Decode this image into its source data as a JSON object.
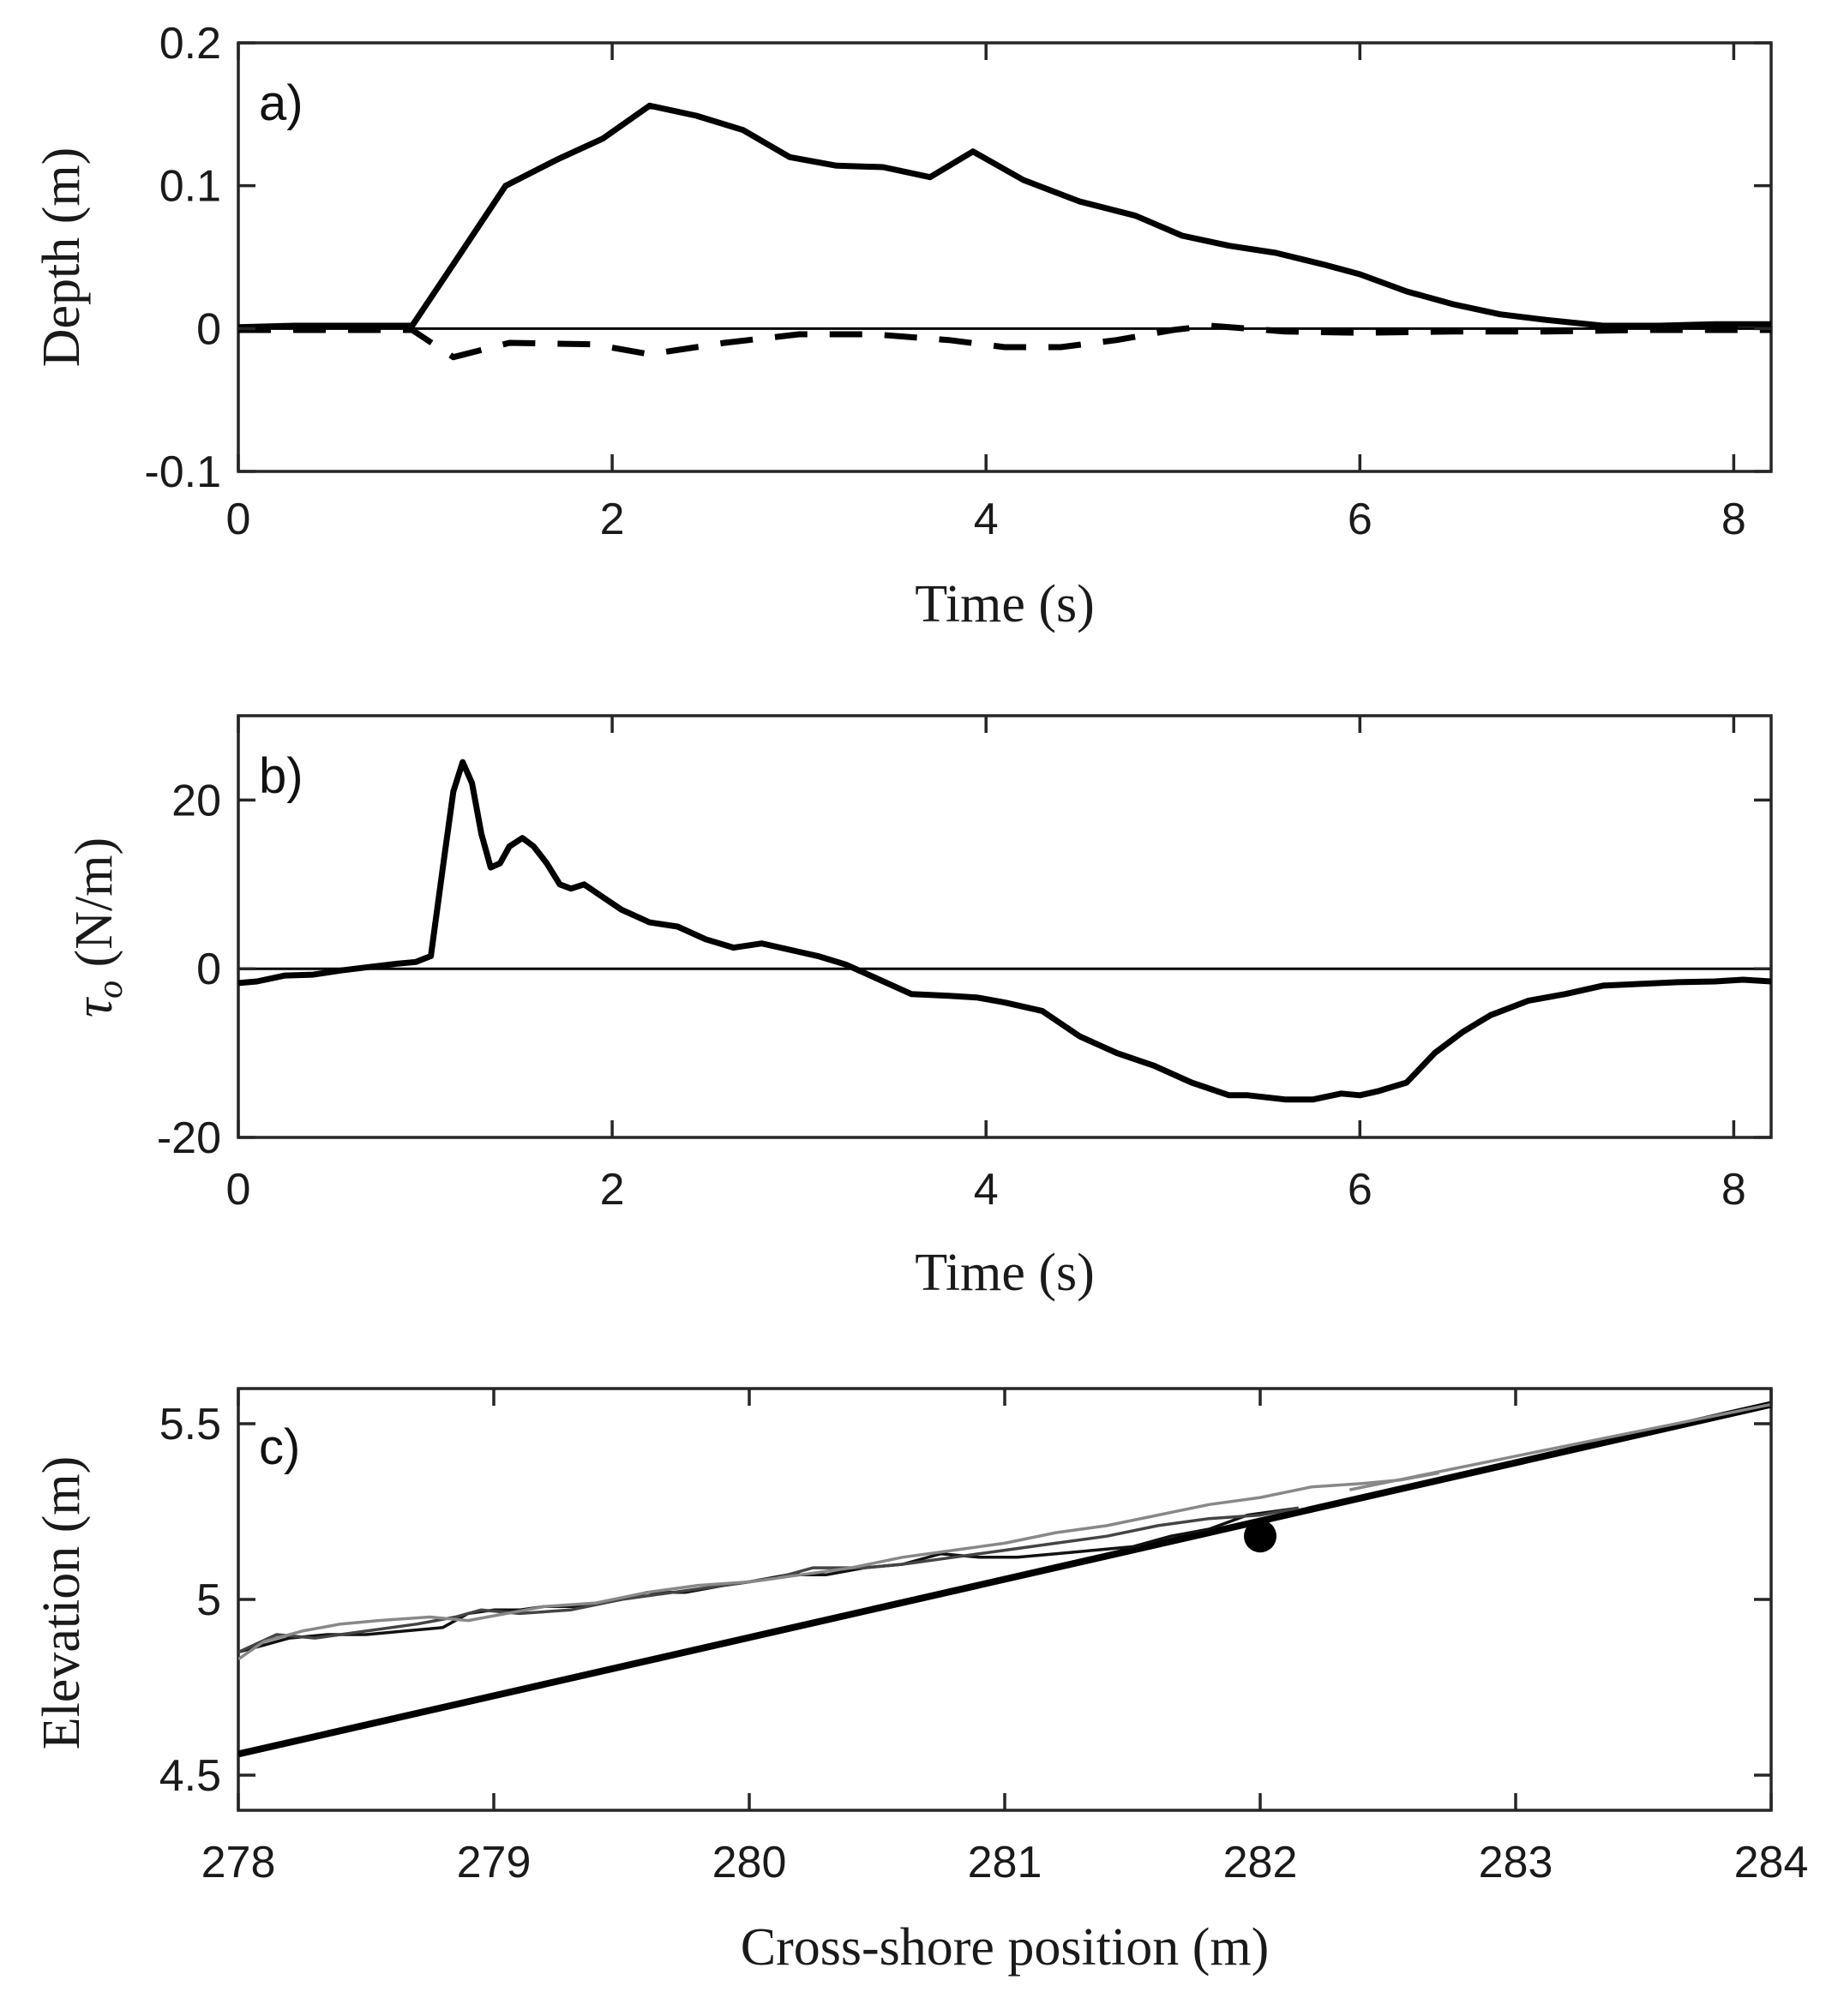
{
  "chart_data": [
    {
      "type": "line",
      "panel_label": "a)",
      "xlabel": "Time (s)",
      "ylabel": "Depth (m)",
      "xlim": [
        0,
        8.2
      ],
      "ylim": [
        -0.1,
        0.2
      ],
      "xticks": [
        0,
        2,
        4,
        6,
        8
      ],
      "xtick_labels": [
        "0",
        "2",
        "4",
        "6",
        "8"
      ],
      "yticks": [
        -0.1,
        0,
        0.1,
        0.2
      ],
      "ytick_labels": [
        "-0.1",
        "0",
        "0.1",
        "0.2"
      ],
      "zero_line": true,
      "series": [
        {
          "name": "depth-solid",
          "style": "solid",
          "color": "#000000",
          "x": [
            0,
            0.3,
            0.6,
            0.93,
            1.15,
            1.43,
            1.7,
            1.95,
            2.2,
            2.45,
            2.7,
            2.95,
            3.2,
            3.45,
            3.7,
            3.93,
            4.2,
            4.5,
            4.8,
            5.05,
            5.3,
            5.55,
            5.8,
            6.0,
            6.25,
            6.5,
            6.75,
            7.0,
            7.3,
            7.6,
            7.9,
            8.2
          ],
          "y": [
            0.001,
            0.002,
            0.002,
            0.002,
            0.045,
            0.1,
            0.118,
            0.133,
            0.156,
            0.149,
            0.139,
            0.12,
            0.114,
            0.113,
            0.106,
            0.124,
            0.104,
            0.089,
            0.079,
            0.065,
            0.058,
            0.053,
            0.045,
            0.038,
            0.026,
            0.017,
            0.01,
            0.006,
            0.002,
            0.002,
            0.003,
            0.003
          ]
        },
        {
          "name": "depth-dashed",
          "style": "dashed",
          "color": "#000000",
          "x": [
            0,
            0.5,
            0.93,
            1.15,
            1.45,
            1.9,
            2.2,
            2.6,
            3.0,
            3.4,
            3.8,
            4.1,
            4.4,
            4.7,
            5.0,
            5.2,
            5.6,
            6.0,
            6.5,
            7.0,
            7.5,
            8.2
          ],
          "y": [
            -0.001,
            -0.001,
            -0.001,
            -0.02,
            -0.01,
            -0.011,
            -0.018,
            -0.01,
            -0.004,
            -0.004,
            -0.008,
            -0.013,
            -0.013,
            -0.008,
            -0.001,
            0.002,
            -0.002,
            -0.003,
            -0.002,
            -0.002,
            -0.001,
            -0.001
          ]
        }
      ]
    },
    {
      "type": "line",
      "panel_label": "b)",
      "xlabel": "Time (s)",
      "ylabel_symbol": "τ",
      "ylabel_subscript": "o",
      "ylabel_rest": " (N/m)",
      "xlim": [
        0,
        8.2
      ],
      "ylim": [
        -20,
        30
      ],
      "xticks": [
        0,
        2,
        4,
        6,
        8
      ],
      "xtick_labels": [
        "0",
        "2",
        "4",
        "6",
        "8"
      ],
      "yticks": [
        -20,
        0,
        20
      ],
      "ytick_labels": [
        "-20",
        "0",
        "20"
      ],
      "zero_line": true,
      "series": [
        {
          "name": "tau-o",
          "style": "solid",
          "color": "#000000",
          "x": [
            0,
            0.1,
            0.25,
            0.4,
            0.55,
            0.7,
            0.85,
            0.95,
            1.03,
            1.1,
            1.15,
            1.2,
            1.25,
            1.3,
            1.35,
            1.4,
            1.45,
            1.52,
            1.58,
            1.65,
            1.72,
            1.78,
            1.85,
            1.95,
            2.05,
            2.2,
            2.35,
            2.5,
            2.65,
            2.8,
            3.0,
            3.1,
            3.25,
            3.4,
            3.6,
            3.8,
            3.95,
            4.1,
            4.3,
            4.5,
            4.7,
            4.9,
            5.1,
            5.3,
            5.4,
            5.6,
            5.75,
            5.9,
            6.0,
            6.1,
            6.25,
            6.4,
            6.55,
            6.7,
            6.9,
            7.1,
            7.3,
            7.5,
            7.7,
            7.9,
            8.05,
            8.2
          ],
          "y": [
            -1.7,
            -1.5,
            -0.8,
            -0.7,
            -0.2,
            0.2,
            0.6,
            0.8,
            1.5,
            13,
            21,
            24.5,
            22,
            16,
            12,
            12.5,
            14.5,
            15.5,
            14.5,
            12.5,
            10,
            9.5,
            10,
            8.5,
            7,
            5.5,
            5,
            3.5,
            2.5,
            3,
            2,
            1.5,
            0.5,
            -1,
            -3,
            -3.2,
            -3.4,
            -4,
            -5,
            -8,
            -10,
            -11.5,
            -13.5,
            -15,
            -15,
            -15.5,
            -15.5,
            -14.8,
            -15,
            -14.5,
            -13.5,
            -10,
            -7.5,
            -5.5,
            -3.8,
            -3,
            -2,
            -1.8,
            -1.6,
            -1.5,
            -1.3,
            -1.5
          ]
        }
      ]
    },
    {
      "type": "line",
      "panel_label": "c)",
      "xlabel": "Cross-shore position (m)",
      "ylabel": "Elevation (m)",
      "xlim": [
        278,
        284
      ],
      "ylim": [
        4.4,
        5.6
      ],
      "xticks": [
        278,
        279,
        280,
        281,
        282,
        283,
        284
      ],
      "xtick_labels": [
        "278",
        "279",
        "280",
        "281",
        "282",
        "283",
        "284"
      ],
      "yticks": [
        4.5,
        5,
        5.5
      ],
      "ytick_labels": [
        "4.5",
        "5",
        "5.5"
      ],
      "series": [
        {
          "name": "bed-profile",
          "style": "solid-thick",
          "color": "#000000",
          "x": [
            278,
            284
          ],
          "y": [
            4.56,
            5.555
          ]
        },
        {
          "name": "bed-profile-overlay",
          "style": "solid",
          "color": "#888888",
          "x": [
            282.35,
            284
          ],
          "y": [
            5.312,
            5.555
          ]
        },
        {
          "name": "surface-black",
          "style": "solid",
          "color": "#111111",
          "x": [
            278,
            278.1,
            278.2,
            278.35,
            278.5,
            278.65,
            278.8,
            278.9,
            279.0,
            279.1,
            279.2,
            279.35,
            279.5,
            279.6,
            279.75,
            279.9,
            280.0,
            280.15,
            280.3,
            280.45,
            280.6,
            280.75,
            280.9,
            281.05,
            281.2,
            281.35,
            281.5,
            281.65,
            281.8,
            281.95,
            282.15
          ],
          "y": [
            4.85,
            4.87,
            4.89,
            4.9,
            4.9,
            4.91,
            4.92,
            4.96,
            4.97,
            4.97,
            4.98,
            4.98,
            5.0,
            5.02,
            5.02,
            5.04,
            5.05,
            5.07,
            5.07,
            5.09,
            5.1,
            5.13,
            5.12,
            5.12,
            5.13,
            5.14,
            5.15,
            5.18,
            5.2,
            5.24,
            5.26
          ]
        },
        {
          "name": "surface-darkgray",
          "style": "solid",
          "color": "#444444",
          "x": [
            278,
            278.15,
            278.3,
            278.5,
            278.7,
            278.85,
            278.95,
            279.1,
            279.3,
            279.5,
            279.7,
            279.9,
            280.1,
            280.25,
            280.45,
            280.6,
            280.8,
            281.0,
            281.2,
            281.4,
            281.6,
            281.8,
            282.0,
            282.15
          ],
          "y": [
            4.85,
            4.9,
            4.89,
            4.91,
            4.93,
            4.95,
            4.97,
            4.96,
            4.97,
            5.0,
            5.02,
            5.04,
            5.06,
            5.09,
            5.09,
            5.1,
            5.12,
            5.14,
            5.16,
            5.18,
            5.21,
            5.23,
            5.24,
            5.26
          ]
        },
        {
          "name": "surface-gray",
          "style": "solid",
          "color": "#888888",
          "x": [
            278,
            278.1,
            278.25,
            278.4,
            278.55,
            278.75,
            278.9,
            279.05,
            279.2,
            279.4,
            279.6,
            279.8,
            280.0,
            280.2,
            280.4,
            280.6,
            280.8,
            281.0,
            281.2,
            281.4,
            281.6,
            281.8,
            282.0,
            282.2,
            282.4,
            282.55,
            282.7
          ],
          "y": [
            4.83,
            4.88,
            4.91,
            4.93,
            4.94,
            4.95,
            4.94,
            4.96,
            4.98,
            4.99,
            5.02,
            5.04,
            5.05,
            5.07,
            5.09,
            5.12,
            5.14,
            5.16,
            5.19,
            5.21,
            5.24,
            5.27,
            5.29,
            5.32,
            5.33,
            5.34,
            5.36
          ]
        }
      ],
      "markers": [
        {
          "name": "observation-point",
          "x": 282,
          "y": 5.18,
          "color": "#000000"
        }
      ]
    }
  ]
}
